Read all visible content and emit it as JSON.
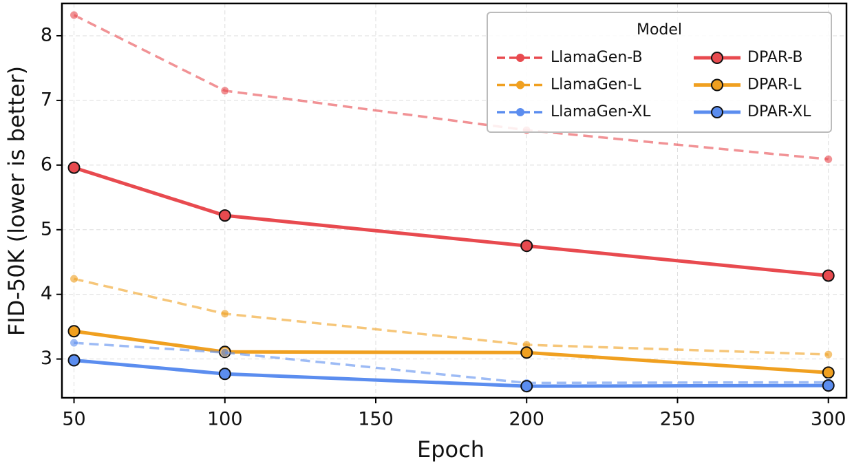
{
  "chart_data": {
    "type": "line",
    "x_label": "Epoch",
    "y_label": "FID-50K (lower is better)",
    "x": [
      50,
      100,
      200,
      300
    ],
    "series": [
      {
        "name": "LlamaGen-B",
        "color": "#e84a4f",
        "dashed": true,
        "values": [
          8.32,
          7.15,
          6.54,
          6.09
        ]
      },
      {
        "name": "DPAR-B",
        "color": "#e84a4f",
        "dashed": false,
        "values": [
          5.96,
          5.22,
          4.75,
          4.29
        ]
      },
      {
        "name": "LlamaGen-L",
        "color": "#f0a020",
        "dashed": true,
        "values": [
          4.24,
          3.7,
          3.22,
          3.07
        ]
      },
      {
        "name": "DPAR-L",
        "color": "#f0a020",
        "dashed": false,
        "values": [
          3.43,
          3.11,
          3.1,
          2.79
        ]
      },
      {
        "name": "LlamaGen-XL",
        "color": "#5b8def",
        "dashed": true,
        "values": [
          3.25,
          3.1,
          2.63,
          2.64
        ]
      },
      {
        "name": "DPAR-XL",
        "color": "#5b8def",
        "dashed": false,
        "values": [
          2.98,
          2.77,
          2.58,
          2.59
        ]
      }
    ],
    "xlim": [
      46,
      306
    ],
    "xticks": [
      50,
      100,
      150,
      200,
      250,
      300
    ],
    "ylim": [
      2.4,
      8.5
    ],
    "yticks": [
      3,
      4,
      5,
      6,
      7,
      8
    ],
    "grid": true,
    "legend": {
      "title": "Model",
      "position": "upper right",
      "columns": 2
    }
  }
}
